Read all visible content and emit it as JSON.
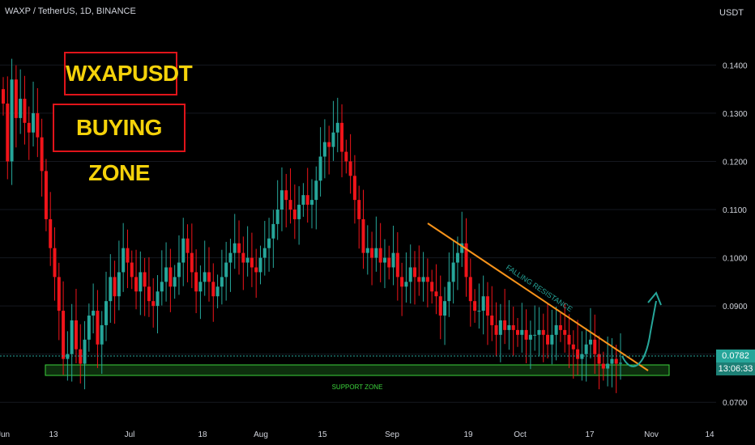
{
  "header": {
    "symbol_line": "WAXP / TetherUS, 1D, BINANCE",
    "unit": "USDT"
  },
  "overlay": {
    "title_box": "WXAPUSDT",
    "subtitle_box": "BUYING ZONE"
  },
  "price_badge": {
    "last_price": "0.0782",
    "countdown": "13:06:33"
  },
  "colors": {
    "up": "#26a69a",
    "down": "#f0141a",
    "resistance": "#f7931a",
    "support": "#3bd23b",
    "arrow": "#26a69a",
    "background": "#000000"
  },
  "chart_data": {
    "type": "candlestick",
    "ylim": [
      0.0655,
      0.1535
    ],
    "yticks": [
      "0.1400",
      "0.1300",
      "0.1200",
      "0.1100",
      "0.1000",
      "0.0900",
      "0.0800",
      "0.0700"
    ],
    "xticks": [
      "Jun",
      "13",
      "Jul",
      "18",
      "Aug",
      "15",
      "Sep",
      "19",
      "Oct",
      "17",
      "Nov",
      "14"
    ],
    "annotations": [
      {
        "label": "FALLING RESISTANCE",
        "kind": "trendline",
        "from": [
          0.1045
        ],
        "to": [
          0.076
        ]
      },
      {
        "label": "SUPPORT ZONE",
        "kind": "zone",
        "low": 0.0741,
        "high": 0.0749
      }
    ],
    "closes": [
      0.132,
      0.12,
      0.137,
      0.129,
      0.133,
      0.128,
      0.126,
      0.13,
      0.125,
      0.118,
      0.108,
      0.102,
      0.096,
      0.089,
      0.079,
      0.08,
      0.087,
      0.081,
      0.078,
      0.083,
      0.088,
      0.089,
      0.082,
      0.086,
      0.091,
      0.096,
      0.092,
      0.097,
      0.102,
      0.099,
      0.096,
      0.093,
      0.097,
      0.094,
      0.091,
      0.09,
      0.093,
      0.095,
      0.098,
      0.094,
      0.096,
      0.099,
      0.104,
      0.101,
      0.097,
      0.093,
      0.095,
      0.097,
      0.095,
      0.092,
      0.094,
      0.096,
      0.099,
      0.101,
      0.103,
      0.101,
      0.099,
      0.1,
      0.098,
      0.097,
      0.1,
      0.102,
      0.104,
      0.107,
      0.11,
      0.114,
      0.112,
      0.11,
      0.108,
      0.111,
      0.113,
      0.111,
      0.112,
      0.116,
      0.121,
      0.124,
      0.123,
      0.126,
      0.128,
      0.122,
      0.12,
      0.117,
      0.112,
      0.108,
      0.101,
      0.102,
      0.1,
      0.102,
      0.099,
      0.1,
      0.098,
      0.101,
      0.096,
      0.094,
      0.095,
      0.098,
      0.096,
      0.095,
      0.096,
      0.095,
      0.093,
      0.092,
      0.088,
      0.091,
      0.095,
      0.099,
      0.101,
      0.103,
      0.096,
      0.091,
      0.089,
      0.089,
      0.092,
      0.088,
      0.086,
      0.084,
      0.087,
      0.085,
      0.086,
      0.085,
      0.084,
      0.085,
      0.083,
      0.084,
      0.084,
      0.085,
      0.084,
      0.082,
      0.084,
      0.086,
      0.085,
      0.084,
      0.082,
      0.081,
      0.079,
      0.08,
      0.082,
      0.083,
      0.08,
      0.078,
      0.077,
      0.078,
      0.079,
      0.078,
      0.0782
    ]
  }
}
